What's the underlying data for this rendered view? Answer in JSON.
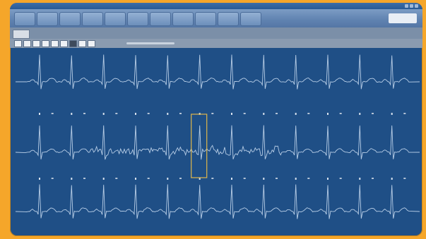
{
  "window": {
    "title": ""
  },
  "toolbar": {
    "buttons": [
      "",
      "",
      "",
      "",
      "",
      "",
      "",
      "",
      "",
      "",
      ""
    ],
    "logo": ""
  },
  "tabs": [
    ""
  ],
  "ecg": {
    "leads": [
      {
        "name": "",
        "beats": 12
      },
      {
        "name": "",
        "beats": 12
      },
      {
        "name": "",
        "beats": 12
      }
    ],
    "trace_color": "#b7cde6",
    "background": "#1f4f86",
    "selection_color": "#e0b64a",
    "selected_beat": {
      "lead": 2,
      "index": 6
    }
  }
}
